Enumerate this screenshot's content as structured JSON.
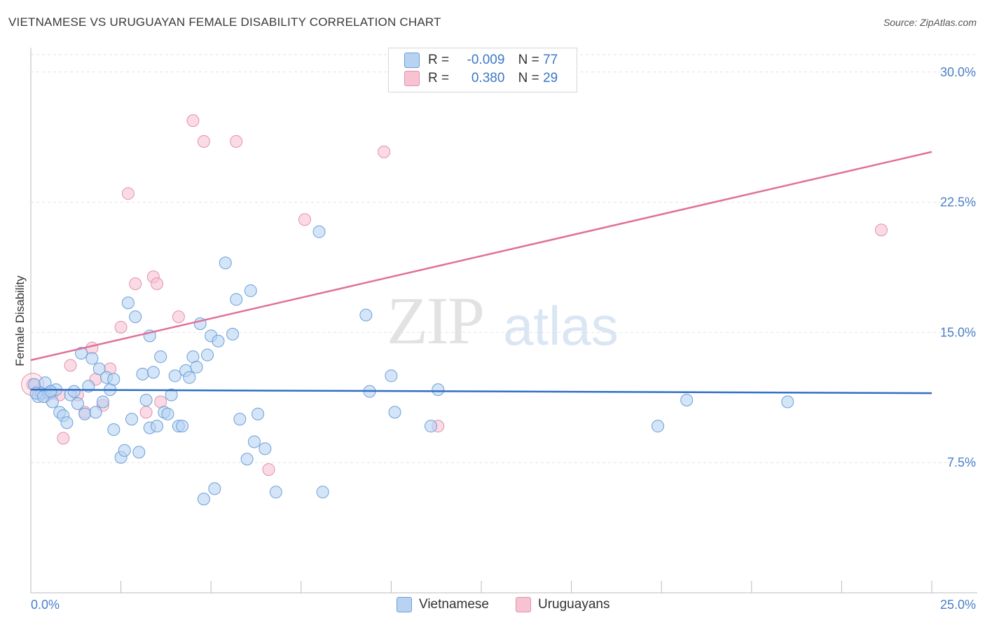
{
  "header": {
    "title": "VIETNAMESE VS URUGUAYAN FEMALE DISABILITY CORRELATION CHART",
    "source": "Source: ZipAtlas.com"
  },
  "legend": {
    "rows": [
      {
        "r_label": "R =",
        "r_value": "-0.009",
        "n_label": "N =",
        "n_value": "77"
      },
      {
        "r_label": "R =",
        "r_value": "0.380",
        "n_label": "N =",
        "n_value": "29"
      }
    ]
  },
  "watermark": {
    "zip": "ZIP",
    "atlas": "atlas"
  },
  "colors": {
    "vietnamese_fill": "#b8d3f2",
    "vietnamese_stroke": "#6b9fdb",
    "vietnamese_line": "#2f6fc4",
    "uruguayan_fill": "#f7c3d3",
    "uruguayan_stroke": "#e590ab",
    "uruguayan_line": "#e0709a"
  },
  "chart_data": {
    "type": "scatter",
    "title": "VIETNAMESE VS URUGUAYAN FEMALE DISABILITY CORRELATION CHART",
    "xlabel": "",
    "ylabel": "Female Disability",
    "xlim": [
      0,
      25
    ],
    "ylim": [
      0,
      31
    ],
    "x_tick_labels": [
      "0.0%",
      "25.0%"
    ],
    "y_ticks": [
      7.5,
      15.0,
      22.5,
      30.0
    ],
    "y_tick_labels": [
      "7.5%",
      "15.0%",
      "22.5%",
      "30.0%"
    ],
    "grid": true,
    "legend_position": "top-center",
    "series": [
      {
        "name": "Vietnamese",
        "r": -0.009,
        "n": 77,
        "trend": {
          "x": [
            0,
            25
          ],
          "y": [
            11.7,
            11.5
          ]
        },
        "points": [
          [
            0.1,
            12.0
          ],
          [
            0.2,
            11.3
          ],
          [
            0.3,
            11.5
          ],
          [
            0.4,
            12.1
          ],
          [
            0.5,
            11.5
          ],
          [
            0.6,
            11.0
          ],
          [
            0.7,
            11.7
          ],
          [
            0.8,
            10.4
          ],
          [
            0.9,
            10.2
          ],
          [
            1.0,
            9.8
          ],
          [
            1.1,
            11.4
          ],
          [
            1.2,
            11.6
          ],
          [
            1.3,
            10.9
          ],
          [
            1.4,
            13.8
          ],
          [
            1.5,
            10.3
          ],
          [
            1.6,
            11.9
          ],
          [
            1.7,
            13.5
          ],
          [
            1.8,
            10.4
          ],
          [
            1.9,
            12.9
          ],
          [
            2.0,
            11.0
          ],
          [
            2.1,
            12.4
          ],
          [
            2.2,
            11.7
          ],
          [
            2.3,
            12.3
          ],
          [
            2.3,
            9.4
          ],
          [
            2.5,
            7.8
          ],
          [
            2.6,
            8.2
          ],
          [
            2.7,
            16.7
          ],
          [
            2.8,
            10.0
          ],
          [
            2.9,
            15.9
          ],
          [
            3.0,
            8.1
          ],
          [
            3.1,
            12.6
          ],
          [
            3.2,
            11.1
          ],
          [
            3.3,
            9.5
          ],
          [
            3.3,
            14.8
          ],
          [
            3.4,
            12.7
          ],
          [
            3.5,
            9.6
          ],
          [
            3.6,
            13.6
          ],
          [
            3.7,
            10.4
          ],
          [
            3.8,
            10.3
          ],
          [
            3.9,
            11.4
          ],
          [
            4.0,
            12.5
          ],
          [
            4.1,
            9.6
          ],
          [
            4.2,
            9.6
          ],
          [
            4.3,
            12.8
          ],
          [
            4.4,
            12.4
          ],
          [
            4.5,
            13.6
          ],
          [
            4.6,
            13.0
          ],
          [
            4.7,
            15.5
          ],
          [
            4.8,
            5.4
          ],
          [
            4.9,
            13.7
          ],
          [
            5.0,
            14.8
          ],
          [
            5.1,
            6.0
          ],
          [
            5.2,
            14.5
          ],
          [
            5.4,
            19.0
          ],
          [
            5.6,
            14.9
          ],
          [
            5.7,
            16.9
          ],
          [
            5.8,
            10.0
          ],
          [
            6.0,
            7.7
          ],
          [
            6.1,
            17.4
          ],
          [
            6.2,
            8.7
          ],
          [
            6.3,
            10.3
          ],
          [
            6.5,
            8.3
          ],
          [
            6.8,
            5.8
          ],
          [
            8.0,
            20.8
          ],
          [
            8.1,
            5.8
          ],
          [
            9.3,
            16.0
          ],
          [
            9.4,
            11.6
          ],
          [
            10.0,
            12.5
          ],
          [
            10.1,
            10.4
          ],
          [
            11.1,
            9.6
          ],
          [
            11.3,
            11.7
          ],
          [
            17.4,
            9.6
          ],
          [
            18.2,
            11.1
          ],
          [
            21.0,
            11.0
          ],
          [
            0.15,
            11.5
          ],
          [
            0.35,
            11.3
          ],
          [
            0.55,
            11.6
          ]
        ]
      },
      {
        "name": "Uruguayans",
        "r": 0.38,
        "n": 29,
        "trend": {
          "x": [
            0,
            25
          ],
          "y": [
            13.4,
            25.4
          ]
        },
        "points": [
          [
            0.05,
            12.0
          ],
          [
            0.2,
            11.6
          ],
          [
            0.4,
            11.3
          ],
          [
            0.6,
            11.5
          ],
          [
            0.8,
            11.4
          ],
          [
            0.9,
            8.9
          ],
          [
            1.1,
            13.1
          ],
          [
            1.3,
            11.4
          ],
          [
            1.5,
            10.4
          ],
          [
            1.7,
            14.1
          ],
          [
            1.8,
            12.3
          ],
          [
            2.0,
            10.8
          ],
          [
            2.2,
            12.9
          ],
          [
            2.5,
            15.3
          ],
          [
            2.7,
            23.0
          ],
          [
            2.9,
            17.8
          ],
          [
            3.2,
            10.4
          ],
          [
            3.4,
            18.2
          ],
          [
            3.5,
            17.8
          ],
          [
            3.6,
            11.0
          ],
          [
            4.1,
            15.9
          ],
          [
            4.5,
            27.2
          ],
          [
            4.8,
            26.0
          ],
          [
            5.7,
            26.0
          ],
          [
            6.6,
            7.1
          ],
          [
            7.6,
            21.5
          ],
          [
            9.8,
            25.4
          ],
          [
            11.3,
            9.6
          ],
          [
            23.6,
            20.9
          ]
        ]
      }
    ]
  },
  "bottom_legend": {
    "items": [
      "Vietnamese",
      "Uruguayans"
    ]
  }
}
